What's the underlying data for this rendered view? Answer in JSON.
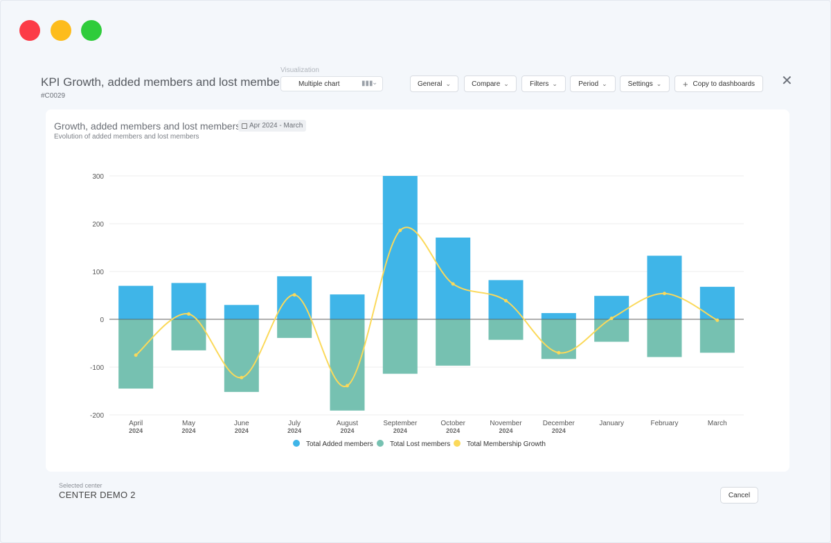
{
  "header": {
    "title": "KPI Growth, added members and lost members",
    "code": "#C0029",
    "visualization_label": "Visualization",
    "visualization_value": "Multiple chart",
    "buttons": {
      "general": "General",
      "compare": "Compare",
      "filters": "Filters",
      "period": "Period",
      "settings": "Settings",
      "copy": "Copy to dashboards"
    }
  },
  "card": {
    "title": "Growth, added members and lost members",
    "date_range": "Apr 2024 - March",
    "subtitle": "Evolution of added members and lost members"
  },
  "footer": {
    "selected_center_label": "Selected center",
    "selected_center_value": "CENTER DEMO 2",
    "cancel": "Cancel"
  },
  "colors": {
    "added": "#3fb5e8",
    "lost": "#76c1b1",
    "growth": "#fbd95a"
  },
  "chart_data": {
    "type": "bar",
    "categories": [
      "April",
      "May",
      "June",
      "July",
      "August",
      "September",
      "October",
      "November",
      "December",
      "January",
      "February",
      "March"
    ],
    "category_years": [
      "2024",
      "2024",
      "2024",
      "2024",
      "2024",
      "2024",
      "2024",
      "2024",
      "2024",
      "",
      "",
      ""
    ],
    "series": [
      {
        "name": "Total Added members",
        "kind": "bar",
        "values": [
          70,
          76,
          30,
          90,
          52,
          300,
          171,
          82,
          13,
          49,
          133,
          68
        ]
      },
      {
        "name": "Total Lost members",
        "kind": "bar",
        "values": [
          -145,
          -65,
          -152,
          -39,
          -191,
          -114,
          -97,
          -43,
          -83,
          -47,
          -79,
          -70
        ]
      },
      {
        "name": "Total Membership Growth",
        "kind": "line",
        "values": [
          -75,
          11,
          -122,
          51,
          -139,
          186,
          74,
          39,
          -70,
          2,
          54,
          -2
        ]
      }
    ],
    "ylim": [
      -200,
      300
    ],
    "yticks": [
      -200,
      -100,
      0,
      100,
      200,
      300
    ],
    "stacked": true,
    "grid": true,
    "legend": "bottom"
  }
}
